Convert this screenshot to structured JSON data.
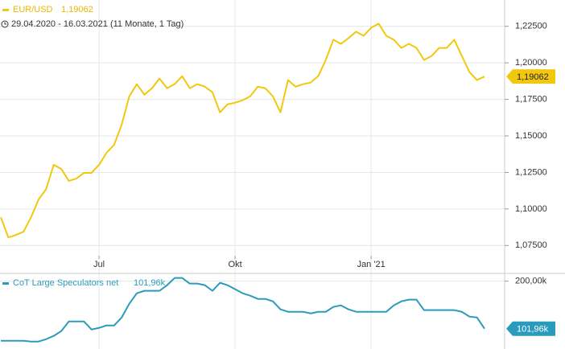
{
  "chart_data": [
    {
      "type": "line",
      "title": "EUR/USD",
      "subtitle": "29.04.2020 - 16.03.2021  (11 Monate, 1 Tag)",
      "last_value_label": "1,19062",
      "categories": [
        null,
        null,
        null,
        null,
        null,
        null,
        null,
        null,
        null,
        null,
        null,
        null,
        null,
        "Jul",
        null,
        null,
        null,
        null,
        null,
        null,
        null,
        null,
        null,
        null,
        null,
        null,
        null,
        null,
        null,
        null,
        null,
        "Okt",
        null,
        null,
        null,
        null,
        null,
        null,
        null,
        null,
        null,
        null,
        null,
        null,
        null,
        null,
        null,
        null,
        null,
        "Jan '21",
        null,
        null,
        null,
        null,
        null,
        null,
        null,
        null,
        null,
        null,
        null,
        null,
        null,
        null,
        null
      ],
      "series": [
        {
          "name": "EUR/USD",
          "color": "#f2c80f",
          "values": [
            1.0943,
            1.0805,
            1.0822,
            1.0844,
            1.0943,
            1.1065,
            1.1136,
            1.1302,
            1.1274,
            1.1192,
            1.1208,
            1.1247,
            1.1247,
            1.1302,
            1.1385,
            1.144,
            1.1578,
            1.1771,
            1.1854,
            1.1782,
            1.1826,
            1.1893,
            1.1826,
            1.1854,
            1.1909,
            1.1826,
            1.1854,
            1.1837,
            1.1799,
            1.1661,
            1.1716,
            1.1727,
            1.1744,
            1.1771,
            1.1837,
            1.1826,
            1.1771,
            1.1661,
            1.1882,
            1.1837,
            1.1854,
            1.1865,
            1.1909,
            1.202,
            1.2158,
            1.213,
            1.2169,
            1.2213,
            1.2185,
            1.224,
            1.2268,
            1.2185,
            1.2158,
            1.2102,
            1.213,
            1.2102,
            1.202,
            1.2047,
            1.2102,
            1.2102,
            1.2158,
            1.2047,
            1.1937,
            1.1882,
            1.19062
          ]
        }
      ],
      "ylim": [
        1.068,
        1.243
      ],
      "yticks": [
        {
          "value": 1.075,
          "label": "1,07500"
        },
        {
          "value": 1.1,
          "label": "1,10000"
        },
        {
          "value": 1.125,
          "label": "1,12500"
        },
        {
          "value": 1.15,
          "label": "1,15000"
        },
        {
          "value": 1.175,
          "label": "1,17500"
        },
        {
          "value": 1.2,
          "label": "1,20000"
        },
        {
          "value": 1.225,
          "label": "1,22500"
        }
      ],
      "grid": true
    },
    {
      "type": "line",
      "title": "CoT Large Speculators net",
      "last_value_label": "101,96k",
      "series": [
        {
          "name": "CoT Large Speculators net",
          "color": "#2b9bbd",
          "values": [
            77000,
            77000,
            77000,
            77000,
            75400,
            75400,
            80300,
            87000,
            97000,
            116900,
            116900,
            116900,
            100300,
            103600,
            108600,
            108600,
            125200,
            153500,
            175100,
            180100,
            180100,
            180100,
            191700,
            206600,
            206600,
            195000,
            195000,
            191700,
            180100,
            196700,
            191700,
            183400,
            175100,
            170100,
            163400,
            163400,
            158400,
            141800,
            136800,
            136800,
            136800,
            133500,
            136800,
            136800,
            146800,
            150100,
            141800,
            136800,
            136800,
            136800,
            136800,
            136800,
            150100,
            158400,
            161800,
            161800,
            140200,
            140200,
            140200,
            140200,
            140200,
            136800,
            126900,
            125200,
            101960
          ]
        }
      ],
      "ylim": [
        60000,
        216000
      ],
      "yticks": [
        {
          "value": 200000,
          "label": "200,00k"
        }
      ],
      "grid": true
    }
  ]
}
